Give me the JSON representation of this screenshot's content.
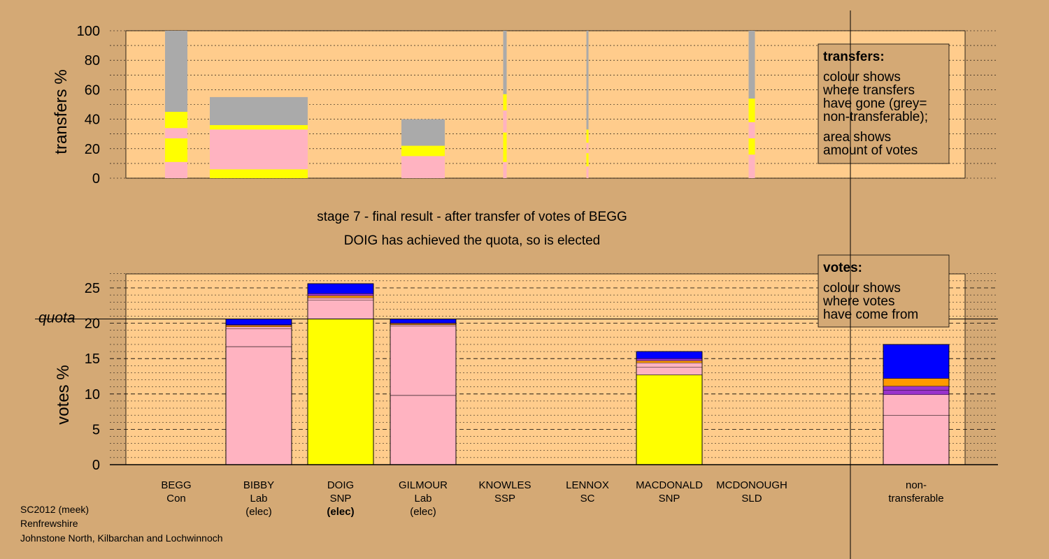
{
  "colors": {
    "page_bg": "#d4a975",
    "plot_bg": "#ffcc8c",
    "pink": "#ffb3c1",
    "yellow": "#ffff00",
    "blue": "#0000ff",
    "orange": "#ff9900",
    "purple": "#9933cc",
    "grey": "#aaaaaa"
  },
  "header": {
    "stage_text": "stage 7 - final result - after transfer of votes of BEGG",
    "elected_text": "DOIG has achieved the quota, so is elected"
  },
  "footer": {
    "line1": "SC2012 (meek)",
    "line2": "Renfrewshire",
    "line3": "Johnstone North, Kilbarchan and Lochwinnoch"
  },
  "transfers_legend": {
    "title": "transfers:",
    "line1": "colour shows",
    "line2": "where transfers",
    "line3": "have gone (grey=",
    "line4": "non-transferable);",
    "line5": "area shows",
    "line6": "amount of votes"
  },
  "votes_legend": {
    "title": "votes:",
    "line1": "colour shows",
    "line2": "where votes",
    "line3": "have come from"
  },
  "chart_data": [
    {
      "type": "bar",
      "name": "transfers",
      "ylabel": "transfers %",
      "ylim": [
        0,
        100
      ],
      "yticks": [
        0,
        20,
        40,
        60,
        80,
        100
      ],
      "grid": true,
      "bars": [
        {
          "candidate": "BEGG",
          "segments": [
            {
              "color": "pink",
              "from": 0,
              "to": 11
            },
            {
              "color": "yellow",
              "from": 11,
              "to": 27
            },
            {
              "color": "pink",
              "from": 27,
              "to": 34
            },
            {
              "color": "yellow",
              "from": 34,
              "to": 45
            },
            {
              "color": "grey",
              "from": 45,
              "to": 100
            }
          ]
        },
        {
          "candidate": "BIBBY",
          "segments": [
            {
              "color": "yellow",
              "from": 0,
              "to": 6
            },
            {
              "color": "pink",
              "from": 6,
              "to": 33
            },
            {
              "color": "yellow",
              "from": 33,
              "to": 36
            },
            {
              "color": "grey",
              "from": 36,
              "to": 55
            }
          ]
        },
        {
          "candidate": "GILMOUR",
          "segments": [
            {
              "color": "pink",
              "from": 0,
              "to": 15
            },
            {
              "color": "yellow",
              "from": 15,
              "to": 22
            },
            {
              "color": "grey",
              "from": 22,
              "to": 40
            }
          ]
        },
        {
          "candidate": "KNOWLES",
          "segments": [
            {
              "color": "pink",
              "from": 0,
              "to": 11
            },
            {
              "color": "yellow",
              "from": 11,
              "to": 31
            },
            {
              "color": "pink",
              "from": 31,
              "to": 46
            },
            {
              "color": "yellow",
              "from": 46,
              "to": 57
            },
            {
              "color": "grey",
              "from": 57,
              "to": 100
            }
          ]
        },
        {
          "candidate": "LENNOX",
          "segments": [
            {
              "color": "pink",
              "from": 0,
              "to": 8
            },
            {
              "color": "yellow",
              "from": 8,
              "to": 17
            },
            {
              "color": "pink",
              "from": 17,
              "to": 24
            },
            {
              "color": "yellow",
              "from": 24,
              "to": 33
            },
            {
              "color": "grey",
              "from": 33,
              "to": 100
            }
          ]
        },
        {
          "candidate": "MCDONOUGH",
          "segments": [
            {
              "color": "pink",
              "from": 0,
              "to": 16
            },
            {
              "color": "yellow",
              "from": 16,
              "to": 27
            },
            {
              "color": "pink",
              "from": 27,
              "to": 38
            },
            {
              "color": "yellow",
              "from": 38,
              "to": 54
            },
            {
              "color": "grey",
              "from": 54,
              "to": 100
            }
          ]
        }
      ]
    },
    {
      "type": "bar",
      "name": "votes",
      "ylabel": "votes %",
      "ylim": [
        0,
        27
      ],
      "yticks": [
        0,
        5,
        10,
        15,
        20,
        25
      ],
      "quota_label": "quota",
      "quota": 20.6,
      "grid": true,
      "candidates": [
        {
          "name": "BEGG",
          "party": "Con",
          "status": "",
          "segments": []
        },
        {
          "name": "BIBBY",
          "party": "Lab",
          "status": "(elec)",
          "segments": [
            {
              "color": "pink",
              "from": 0,
              "to": 16.7,
              "line": true
            },
            {
              "color": "pink",
              "from": 16.7,
              "to": 19.2
            },
            {
              "color": "pink",
              "from": 19.2,
              "to": 19.5
            },
            {
              "color": "orange",
              "from": 19.5,
              "to": 19.7
            },
            {
              "color": "purple",
              "from": 19.7,
              "to": 19.8
            },
            {
              "color": "blue",
              "from": 19.8,
              "to": 20.6
            }
          ]
        },
        {
          "name": "DOIG",
          "party": "SNP",
          "status": "(elec)",
          "segments": [
            {
              "color": "yellow",
              "from": 0,
              "to": 20.6,
              "line": true
            },
            {
              "color": "pink",
              "from": 20.6,
              "to": 23.3
            },
            {
              "color": "pink",
              "from": 23.3,
              "to": 23.6
            },
            {
              "color": "orange",
              "from": 23.6,
              "to": 23.9
            },
            {
              "color": "purple",
              "from": 23.9,
              "to": 24.2
            },
            {
              "color": "blue",
              "from": 24.2,
              "to": 25.6
            }
          ]
        },
        {
          "name": "GILMOUR",
          "party": "Lab",
          "status": "(elec)",
          "segments": [
            {
              "color": "pink",
              "from": 0,
              "to": 9.8,
              "line": true
            },
            {
              "color": "pink",
              "from": 9.8,
              "to": 19.6
            },
            {
              "color": "pink",
              "from": 19.6,
              "to": 19.8
            },
            {
              "color": "orange",
              "from": 19.8,
              "to": 19.95
            },
            {
              "color": "purple",
              "from": 19.95,
              "to": 20.05
            },
            {
              "color": "blue",
              "from": 20.05,
              "to": 20.6
            }
          ]
        },
        {
          "name": "KNOWLES",
          "party": "SSP",
          "status": "",
          "segments": []
        },
        {
          "name": "LENNOX",
          "party": "SC",
          "status": "",
          "segments": []
        },
        {
          "name": "MACDONALD",
          "party": "SNP",
          "status": "",
          "segments": [
            {
              "color": "yellow",
              "from": 0,
              "to": 12.7,
              "line": true
            },
            {
              "color": "pink",
              "from": 12.7,
              "to": 13.8
            },
            {
              "color": "pink",
              "from": 13.8,
              "to": 14.4
            },
            {
              "color": "orange",
              "from": 14.4,
              "to": 14.7
            },
            {
              "color": "purple",
              "from": 14.7,
              "to": 15.0
            },
            {
              "color": "blue",
              "from": 15.0,
              "to": 16.0
            }
          ]
        },
        {
          "name": "MCDONOUGH",
          "party": "SLD",
          "status": "",
          "segments": []
        },
        {
          "name": "non-",
          "party": "transferable",
          "status": "",
          "segments": [
            {
              "color": "pink",
              "from": 0,
              "to": 7.0,
              "line": true
            },
            {
              "color": "pink",
              "from": 7.0,
              "to": 9.9
            },
            {
              "color": "purple",
              "from": 9.9,
              "to": 10.5
            },
            {
              "color": "purple",
              "from": 10.5,
              "to": 11.1
            },
            {
              "color": "orange",
              "from": 11.1,
              "to": 12.2
            },
            {
              "color": "blue",
              "from": 12.2,
              "to": 17.0
            }
          ]
        }
      ]
    }
  ]
}
